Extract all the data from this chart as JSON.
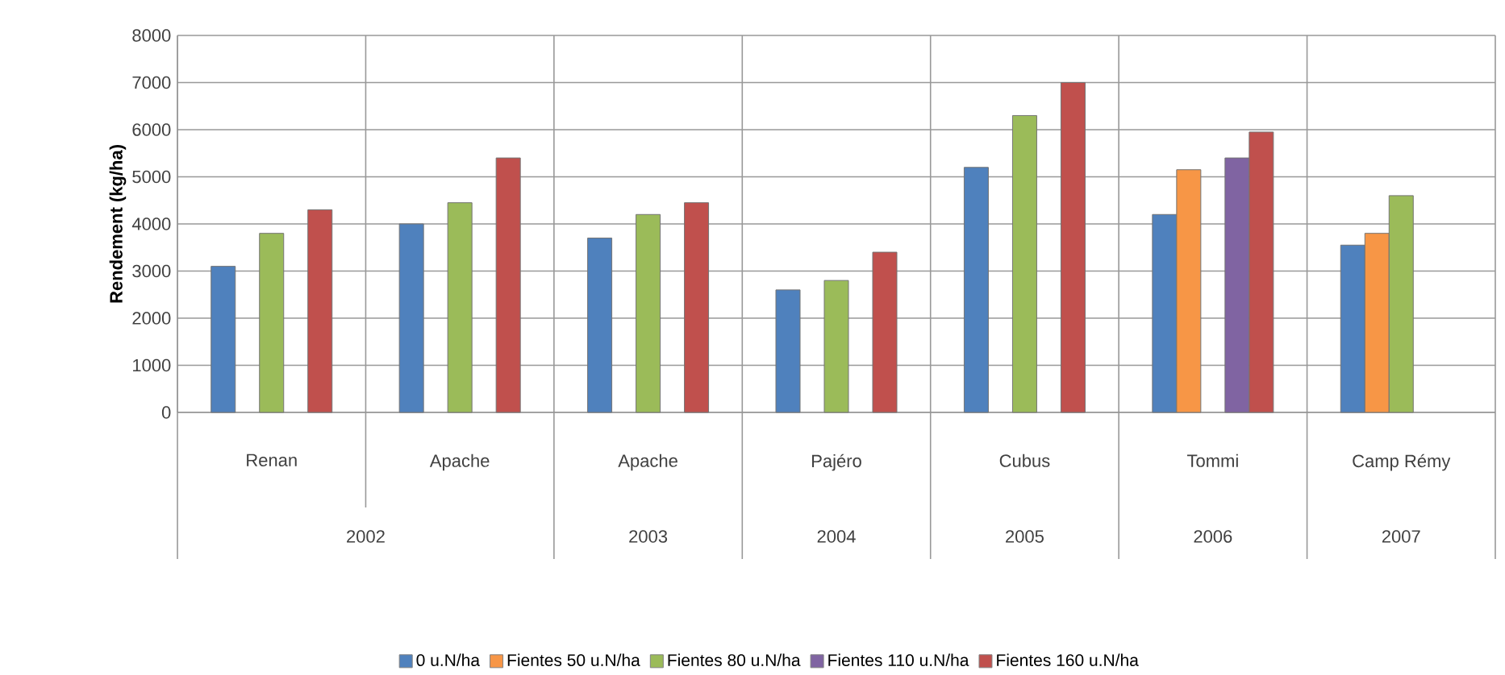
{
  "chart_data": {
    "type": "bar",
    "ylabel": "Rendement (kg/ha)",
    "categories": [
      "Renan",
      "Apache",
      "Apache",
      "Pajéro",
      "Cubus",
      "Tommi",
      "Camp Rémy"
    ],
    "annotations": [
      "2002",
      "2003",
      "2004",
      "2005",
      "2006",
      "2007"
    ],
    "series": [
      {
        "name": "0 u.N/ha",
        "color": "#4f81bd",
        "values": [
          3100,
          4000,
          3700,
          2600,
          5200,
          4200,
          3550
        ]
      },
      {
        "name": "Fientes 50 u.N/ha",
        "color": "#f79646",
        "values": [
          null,
          null,
          null,
          null,
          null,
          5150,
          3800
        ]
      },
      {
        "name": "Fientes 80 u.N/ha",
        "color": "#9bbb59",
        "values": [
          3800,
          4450,
          4200,
          2800,
          6300,
          null,
          4600
        ]
      },
      {
        "name": "Fientes 110 u.N/ha",
        "color": "#8064a2",
        "values": [
          null,
          null,
          null,
          null,
          null,
          5400,
          null
        ]
      },
      {
        "name": "Fientes 160 u.N/ha",
        "color": "#c0504d",
        "values": [
          4300,
          5400,
          4450,
          3400,
          7000,
          5950,
          null
        ]
      }
    ],
    "ylim": [
      0,
      8000
    ],
    "yticks": [
      0,
      1000,
      2000,
      3000,
      4000,
      5000,
      6000,
      7000,
      8000
    ],
    "grid": true,
    "legend": "bottom"
  }
}
